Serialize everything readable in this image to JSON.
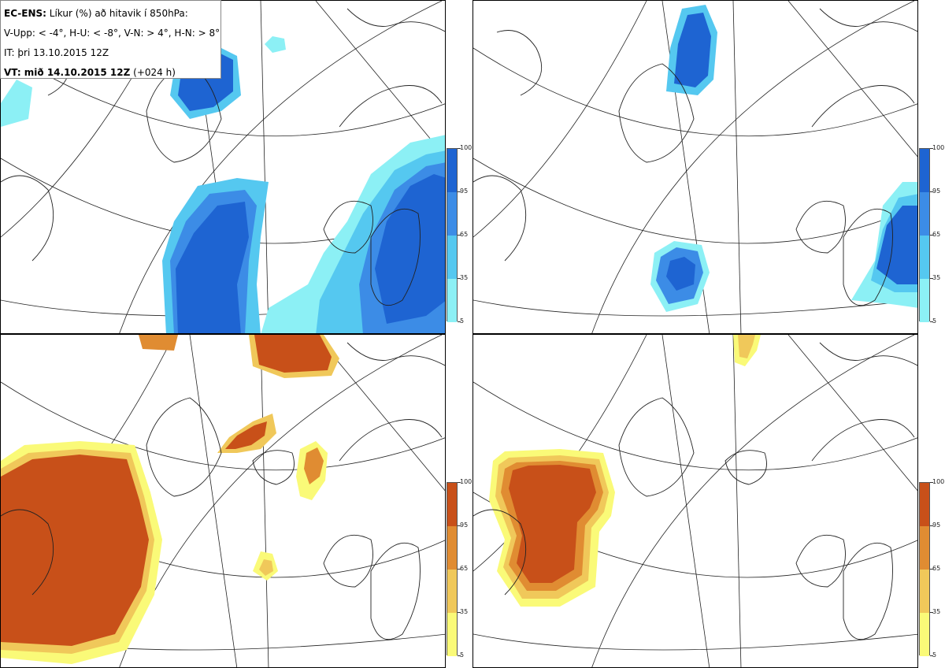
{
  "info": {
    "title_bold": "EC-ENS:",
    "title_rest": "Líkur (%) að hitavik í 850hPa:",
    "thresholds": "V-Upp: < -4°, H-U: < -8°, V-N: > 4°, H-N: > 8°",
    "initial_time": "IT: þri 13.10.2015 12Z",
    "valid_bold": "VT: mið 14.10.2015 12Z",
    "valid_rest": "(+024 h)"
  },
  "colorbar": {
    "ticks": [
      "100",
      "95",
      "65",
      "35",
      "5"
    ],
    "cold_colors": [
      "#1e64d2",
      "#3c8ce6",
      "#55c8f0",
      "#8cf0f5"
    ],
    "warm_colors": [
      "#c85019",
      "#e08c32",
      "#f0c85a",
      "#fafa78"
    ]
  },
  "panels": [
    {
      "id": "V-Upp",
      "scheme": "cold"
    },
    {
      "id": "H-U",
      "scheme": "cold"
    },
    {
      "id": "V-N",
      "scheme": "warm"
    },
    {
      "id": "H-N",
      "scheme": "warm"
    }
  ]
}
